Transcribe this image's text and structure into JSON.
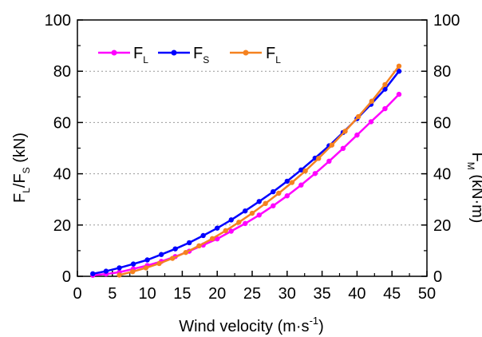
{
  "chart_data": {
    "type": "line",
    "xlabel": "Wind velocity (m·s",
    "xlabel_sup": "-1",
    "xlabel_end": ")",
    "ylabel_left": {
      "a": "F",
      "a_sub": "L",
      "mid": "/F",
      "b_sub": "S",
      "end": " (kN)"
    },
    "ylabel_right": {
      "a": "F",
      "a_sub": "M",
      "end": " (kN·m)"
    },
    "xlim": [
      0,
      50
    ],
    "ylim_left": [
      0,
      100
    ],
    "ylim_right": [
      0,
      100
    ],
    "x_ticks": [
      "0",
      "5",
      "10",
      "15",
      "20",
      "25",
      "30",
      "35",
      "40",
      "45",
      "50"
    ],
    "y_ticks_left": [
      "0",
      "20",
      "40",
      "60",
      "80",
      "100"
    ],
    "y_ticks_right": [
      "0",
      "20",
      "40",
      "60",
      "80",
      "100"
    ],
    "gridlines": "dotted horizontal at 20, 40, 60, 80",
    "legend_position": "top-left",
    "series": [
      {
        "name": "F",
        "name_sub": "L",
        "color": "#ff00ff",
        "x": [
          2.2,
          4.1,
          6.0,
          8.0,
          10.0,
          12.0,
          14.0,
          16.0,
          18.0,
          20.0,
          22.0,
          24.0,
          26.0,
          28.0,
          30.0,
          32.0,
          34.0,
          36.0,
          38.0,
          40.0,
          42.0,
          44.0,
          46.0
        ],
        "values": [
          0.4,
          0.9,
          1.6,
          2.9,
          4.2,
          5.8,
          7.7,
          9.8,
          12.2,
          14.6,
          17.6,
          20.6,
          23.9,
          27.5,
          31.4,
          35.6,
          40.1,
          44.9,
          49.9,
          55.1,
          60.3,
          65.4,
          71.0
        ]
      },
      {
        "name": "F",
        "name_sub": "S",
        "color": "#0000ff",
        "x": [
          2.2,
          4.1,
          6.0,
          8.0,
          10.0,
          12.0,
          14.0,
          16.0,
          18.0,
          20.0,
          22.0,
          24.0,
          26.0,
          28.0,
          30.0,
          32.0,
          34.0,
          36.0,
          38.0,
          40.0,
          42.0,
          44.0,
          46.0
        ],
        "values": [
          1.0,
          2.0,
          3.3,
          4.8,
          6.4,
          8.5,
          10.7,
          13.1,
          15.9,
          18.8,
          22.0,
          25.5,
          29.2,
          33.0,
          37.1,
          41.5,
          46.1,
          50.9,
          56.1,
          61.5,
          67.1,
          73.0,
          80.0
        ]
      },
      {
        "name": "F",
        "name_sub": "L",
        "color": "#f58220",
        "axis": "right",
        "x": [
          6.0,
          7.9,
          9.8,
          11.7,
          13.6,
          15.5,
          17.4,
          19.3,
          21.2,
          23.1,
          25.0,
          26.9,
          28.8,
          30.7,
          32.6,
          34.5,
          36.4,
          38.3,
          40.2,
          42.1,
          44.0,
          46.0
        ],
        "values": [
          0.5,
          1.8,
          3.3,
          5.0,
          7.0,
          9.3,
          11.9,
          14.7,
          17.8,
          21.1,
          24.6,
          28.4,
          32.4,
          36.6,
          41.1,
          46.0,
          51.2,
          56.6,
          62.3,
          68.3,
          74.8,
          82.0
        ]
      }
    ]
  }
}
